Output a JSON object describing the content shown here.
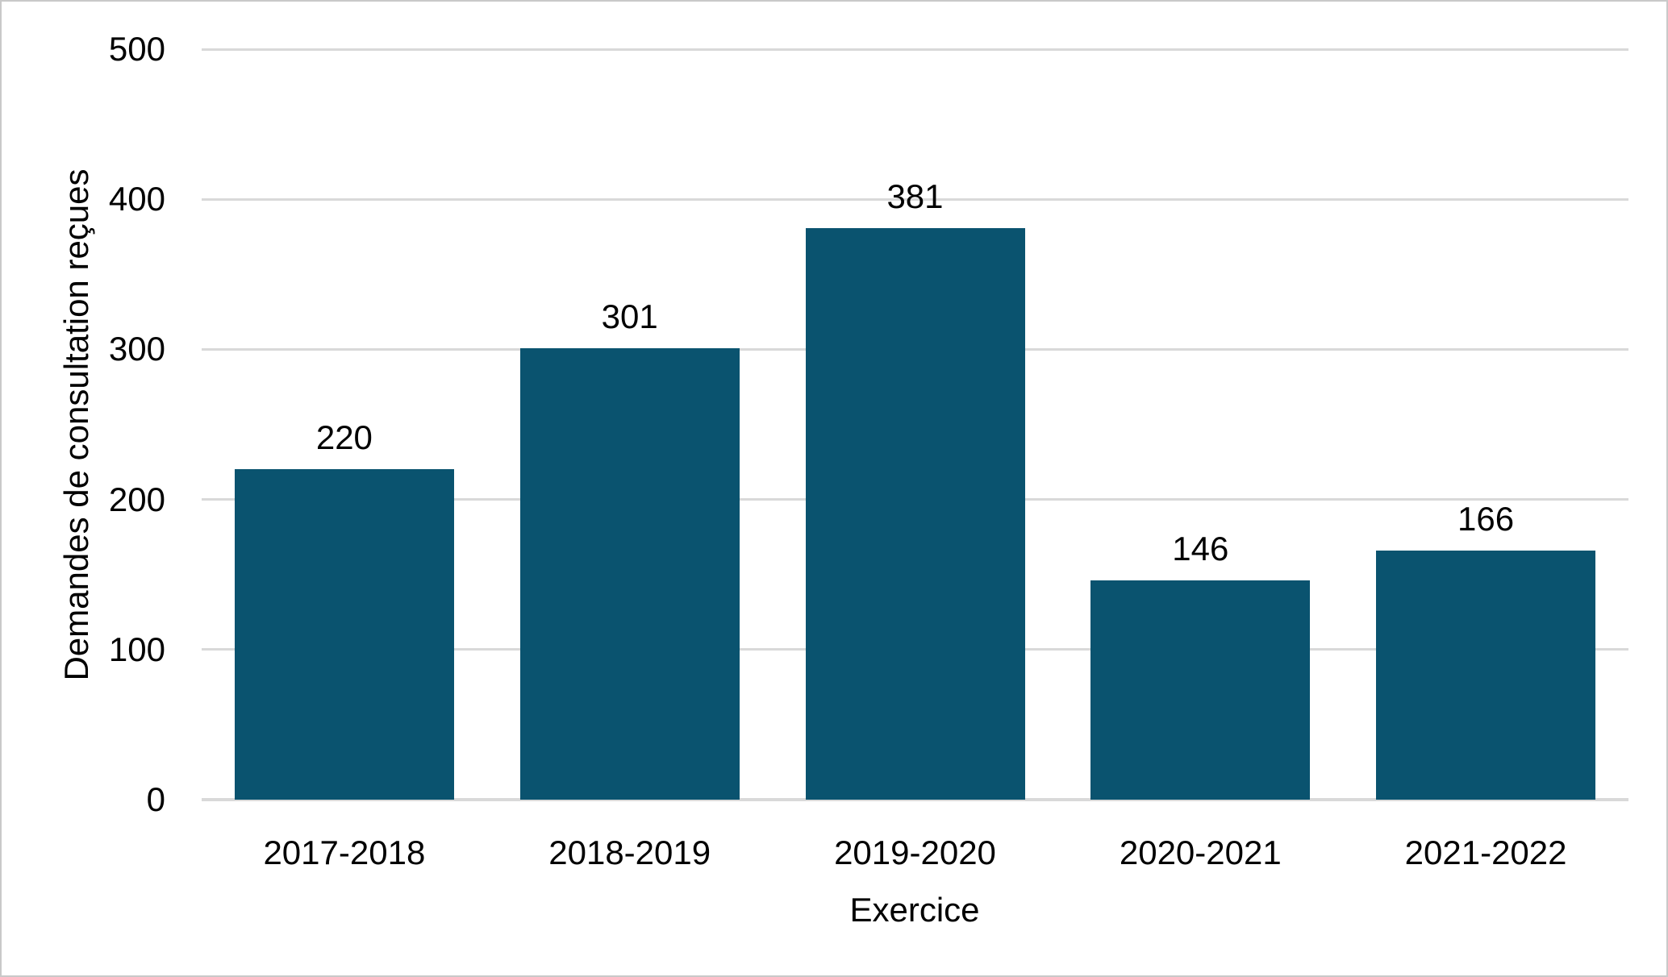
{
  "figure": {
    "border_color": "#c9c9c9",
    "background_color": "#ffffff"
  },
  "chart_data": {
    "type": "bar",
    "title": "",
    "xlabel": "Exercice",
    "ylabel": "Demandes de consultation reçues",
    "categories": [
      "2017-2018",
      "2018-2019",
      "2019-2020",
      "2020-2021",
      "2021-2022"
    ],
    "values": [
      220,
      301,
      381,
      146,
      166
    ],
    "data_labels": [
      "220",
      "301",
      "381",
      "146",
      "166"
    ],
    "ylim": [
      0,
      500
    ],
    "yticks": [
      0,
      100,
      200,
      300,
      400,
      500
    ],
    "grid": "horizontal-only",
    "legend": "none",
    "bar_color": "#0a536f",
    "gridline_color": "#d9d9d9",
    "text_color": "#000000"
  }
}
